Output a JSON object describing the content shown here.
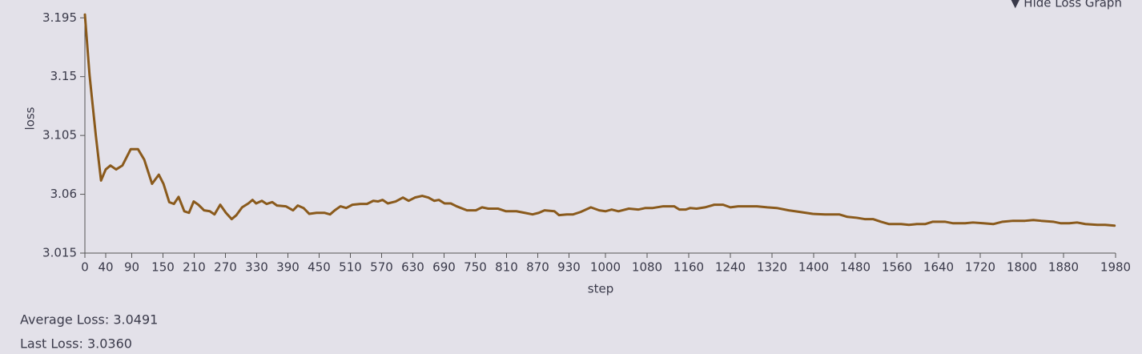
{
  "toggle": "▼ Hide Loss Graph",
  "stats": {
    "average": "Average Loss: 3.0491",
    "last": "Last Loss: 3.0360"
  },
  "chart_data": {
    "type": "line",
    "x_label": "step",
    "y_label": "loss",
    "xlim": [
      0,
      1980
    ],
    "ylim": [
      3.015,
      3.197
    ],
    "xticks": [
      0,
      40,
      90,
      150,
      210,
      270,
      330,
      390,
      450,
      510,
      570,
      630,
      690,
      750,
      810,
      870,
      930,
      1000,
      1080,
      1160,
      1240,
      1320,
      1400,
      1480,
      1560,
      1640,
      1720,
      1800,
      1880,
      1980
    ],
    "yticks": [
      3.015,
      3.06,
      3.105,
      3.15,
      3.195
    ],
    "series": [
      {
        "name": "loss",
        "color": "#8a5a1c",
        "x": [
          0,
          9,
          21,
          31,
          40,
          49,
          60,
          72,
          88,
          102,
          114,
          129,
          142,
          151,
          162,
          171,
          180,
          191,
          200,
          209,
          218,
          229,
          240,
          249,
          260,
          271,
          282,
          291,
          302,
          314,
          322,
          329,
          340,
          349,
          360,
          369,
          386,
          400,
          409,
          420,
          431,
          445,
          460,
          471,
          480,
          491,
          502,
          514,
          529,
          542,
          554,
          563,
          572,
          582,
          597,
          611,
          622,
          634,
          648,
          660,
          671,
          680,
          691,
          703,
          714,
          734,
          751,
          763,
          775,
          794,
          809,
          829,
          845,
          860,
          872,
          883,
          902,
          911,
          926,
          938,
          952,
          972,
          988,
          1000,
          1012,
          1025,
          1045,
          1063,
          1077,
          1091,
          1111,
          1132,
          1142,
          1154,
          1163,
          1175,
          1191,
          1209,
          1226,
          1240,
          1255,
          1275,
          1291,
          1311,
          1329,
          1352,
          1375,
          1398,
          1422,
          1449,
          1465,
          1483,
          1498,
          1514,
          1529,
          1545,
          1568,
          1583,
          1598,
          1614,
          1629,
          1652,
          1668,
          1691,
          1706,
          1726,
          1745,
          1763,
          1783,
          1806,
          1822,
          1837,
          1860,
          1875,
          1891,
          1906,
          1922,
          1945,
          1960,
          1978
        ],
        "values": [
          3.1975,
          3.151,
          3.105,
          3.0705,
          3.079,
          3.082,
          3.079,
          3.082,
          3.0945,
          3.0945,
          3.0865,
          3.068,
          3.075,
          3.068,
          3.054,
          3.0526,
          3.058,
          3.047,
          3.0458,
          3.0545,
          3.052,
          3.0477,
          3.047,
          3.0446,
          3.052,
          3.0458,
          3.041,
          3.044,
          3.05,
          3.053,
          3.0557,
          3.053,
          3.055,
          3.0526,
          3.054,
          3.0514,
          3.0508,
          3.0477,
          3.0514,
          3.0495,
          3.045,
          3.0458,
          3.0458,
          3.0446,
          3.0477,
          3.0508,
          3.0495,
          3.052,
          3.0526,
          3.0526,
          3.055,
          3.0545,
          3.0557,
          3.053,
          3.0545,
          3.0575,
          3.055,
          3.0575,
          3.0588,
          3.0575,
          3.055,
          3.0557,
          3.053,
          3.053,
          3.0508,
          3.0477,
          3.0477,
          3.05,
          3.049,
          3.049,
          3.047,
          3.047,
          3.0458,
          3.0446,
          3.0458,
          3.0477,
          3.047,
          3.044,
          3.0446,
          3.0446,
          3.0464,
          3.05,
          3.0477,
          3.047,
          3.0483,
          3.047,
          3.049,
          3.0483,
          3.0495,
          3.0495,
          3.0508,
          3.0508,
          3.0483,
          3.0483,
          3.0495,
          3.049,
          3.05,
          3.052,
          3.052,
          3.05,
          3.0508,
          3.0508,
          3.0508,
          3.05,
          3.0495,
          3.0477,
          3.0464,
          3.045,
          3.0446,
          3.0446,
          3.0427,
          3.042,
          3.041,
          3.041,
          3.039,
          3.0372,
          3.0372,
          3.0366,
          3.0372,
          3.0372,
          3.039,
          3.039,
          3.0378,
          3.0378,
          3.0384,
          3.0378,
          3.0372,
          3.039,
          3.0397,
          3.0397,
          3.0403,
          3.0397,
          3.039,
          3.0378,
          3.0378,
          3.0384,
          3.0372,
          3.0366,
          3.0366,
          3.036
        ]
      }
    ]
  }
}
